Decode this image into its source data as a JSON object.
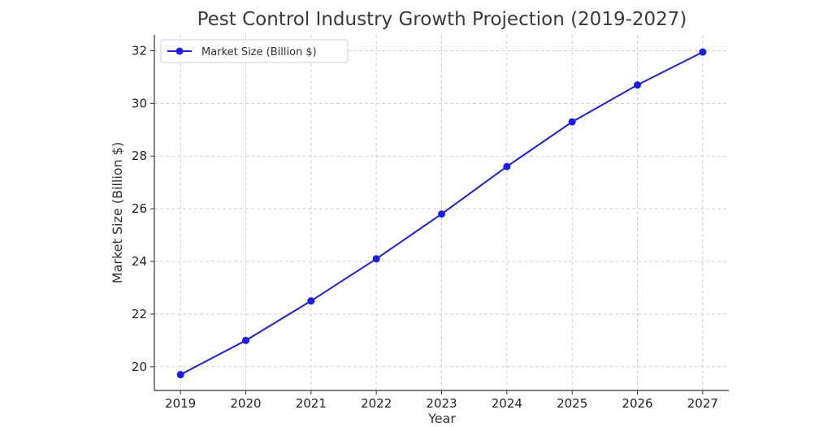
{
  "chart_data": {
    "type": "line",
    "title": "Pest Control Industry Growth Projection (2019-2027)",
    "xlabel": "Year",
    "ylabel": "Market Size (Billion $)",
    "x": [
      2019,
      2020,
      2021,
      2022,
      2023,
      2024,
      2025,
      2026,
      2027
    ],
    "x_ticks": [
      2019,
      2020,
      2021,
      2022,
      2023,
      2024,
      2025,
      2026,
      2027
    ],
    "y_ticks": [
      20,
      22,
      24,
      26,
      28,
      30,
      32
    ],
    "xlim": [
      2018.6,
      2027.4
    ],
    "ylim": [
      19.1,
      32.6
    ],
    "grid": true,
    "legend_position": "top-left",
    "series": [
      {
        "name": "Market Size (Billion $)",
        "color": "#1a1aff",
        "marker": "circle",
        "values": [
          19.7,
          21.0,
          22.5,
          24.1,
          25.8,
          27.6,
          29.3,
          30.7,
          31.95
        ]
      }
    ]
  }
}
